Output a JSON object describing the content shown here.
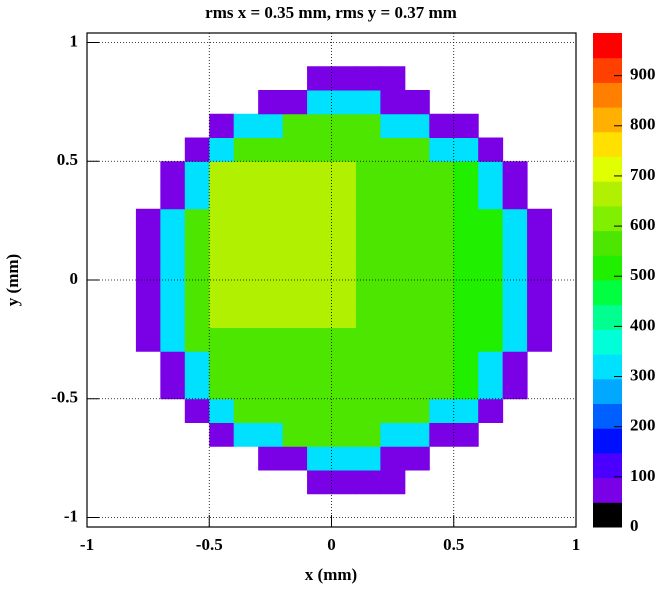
{
  "chart_data": {
    "type": "heatmap",
    "title": "rms x = 0.35 mm, rms y = 0.37 mm",
    "x_label": "x (mm)",
    "y_label": "y (mm)",
    "xlim": [
      -1,
      1
    ],
    "ylim": [
      -1.04,
      1.04
    ],
    "xticks": [
      -1,
      -0.5,
      0,
      0.5,
      1
    ],
    "yticks": [
      -1,
      -0.5,
      0,
      0.5,
      1
    ],
    "zlim": [
      0,
      985
    ],
    "zticks": [
      0,
      100,
      200,
      300,
      400,
      500,
      600,
      700,
      800,
      900
    ],
    "grid": true,
    "colorscale": [
      "#000000",
      "#7a00e6",
      "#4b00ff",
      "#0010ff",
      "#0060ff",
      "#00a8ff",
      "#00e0ff",
      "#00ffd8",
      "#00ff90",
      "#00ff40",
      "#20f000",
      "#4ce600",
      "#80f000",
      "#b0f000",
      "#e0ff00",
      "#ffe000",
      "#ffb000",
      "#ff8000",
      "#ff4000",
      "#ff0000"
    ],
    "x_bins": [
      -1,
      -0.9,
      -0.8,
      -0.7,
      -0.6,
      -0.5,
      -0.4,
      -0.3,
      -0.2,
      -0.1,
      0,
      0.1,
      0.2,
      0.3,
      0.4,
      0.5,
      0.6,
      0.7,
      0.8,
      0.9,
      1
    ],
    "y_bins": [
      -1,
      -0.9,
      -0.8,
      -0.7,
      -0.6,
      -0.5,
      -0.4,
      -0.3,
      -0.2,
      -0.1,
      0,
      0.1,
      0.2,
      0.3,
      0.4,
      0.5,
      0.6,
      0.7,
      0.8,
      0.9,
      1
    ],
    "z": [
      [
        null,
        null,
        null,
        null,
        null,
        null,
        null,
        null,
        null,
        null,
        null,
        null,
        null,
        null,
        null,
        null,
        null,
        null,
        null,
        null
      ],
      [
        null,
        null,
        null,
        null,
        null,
        null,
        null,
        null,
        null,
        80,
        80,
        80,
        80,
        null,
        null,
        null,
        null,
        null,
        null,
        null
      ],
      [
        null,
        null,
        null,
        null,
        null,
        null,
        null,
        80,
        80,
        300,
        300,
        300,
        80,
        80,
        null,
        null,
        null,
        null,
        null,
        null
      ],
      [
        null,
        null,
        null,
        null,
        null,
        80,
        300,
        300,
        560,
        560,
        560,
        560,
        300,
        300,
        80,
        80,
        null,
        null,
        null,
        null
      ],
      [
        null,
        null,
        null,
        null,
        80,
        300,
        560,
        560,
        560,
        560,
        560,
        560,
        560,
        560,
        300,
        300,
        80,
        null,
        null,
        null
      ],
      [
        null,
        null,
        null,
        80,
        300,
        560,
        560,
        560,
        560,
        560,
        560,
        560,
        560,
        560,
        560,
        500,
        300,
        80,
        null,
        null
      ],
      [
        null,
        null,
        null,
        80,
        300,
        560,
        560,
        560,
        560,
        560,
        560,
        560,
        560,
        560,
        560,
        500,
        300,
        80,
        null,
        null
      ],
      [
        null,
        null,
        80,
        300,
        560,
        560,
        560,
        560,
        560,
        560,
        560,
        560,
        560,
        560,
        560,
        500,
        500,
        300,
        80,
        null
      ],
      [
        null,
        null,
        80,
        300,
        560,
        650,
        650,
        650,
        650,
        650,
        650,
        560,
        560,
        560,
        560,
        500,
        500,
        300,
        80,
        null
      ],
      [
        null,
        null,
        80,
        300,
        560,
        650,
        650,
        650,
        650,
        650,
        650,
        560,
        560,
        560,
        560,
        500,
        500,
        300,
        80,
        null
      ],
      [
        null,
        null,
        80,
        300,
        560,
        650,
        650,
        650,
        650,
        650,
        650,
        560,
        560,
        560,
        560,
        500,
        500,
        300,
        80,
        null
      ],
      [
        null,
        null,
        80,
        300,
        560,
        650,
        650,
        650,
        650,
        650,
        650,
        560,
        560,
        560,
        560,
        500,
        500,
        300,
        80,
        null
      ],
      [
        null,
        null,
        80,
        300,
        560,
        650,
        650,
        650,
        650,
        650,
        650,
        560,
        560,
        560,
        560,
        500,
        500,
        300,
        80,
        null
      ],
      [
        null,
        null,
        null,
        80,
        300,
        650,
        650,
        650,
        650,
        650,
        650,
        560,
        560,
        560,
        560,
        500,
        300,
        80,
        null,
        null
      ],
      [
        null,
        null,
        null,
        80,
        300,
        650,
        650,
        650,
        650,
        650,
        650,
        560,
        560,
        560,
        560,
        500,
        300,
        80,
        null,
        null
      ],
      [
        null,
        null,
        null,
        null,
        80,
        300,
        560,
        560,
        560,
        560,
        560,
        560,
        560,
        560,
        300,
        300,
        80,
        null,
        null,
        null
      ],
      [
        null,
        null,
        null,
        null,
        null,
        80,
        300,
        300,
        560,
        560,
        560,
        560,
        300,
        300,
        80,
        80,
        null,
        null,
        null,
        null
      ],
      [
        null,
        null,
        null,
        null,
        null,
        null,
        null,
        80,
        80,
        300,
        300,
        300,
        80,
        80,
        null,
        null,
        null,
        null,
        null,
        null
      ],
      [
        null,
        null,
        null,
        null,
        null,
        null,
        null,
        null,
        null,
        80,
        80,
        80,
        80,
        null,
        null,
        null,
        null,
        null,
        null,
        null
      ],
      [
        null,
        null,
        null,
        null,
        null,
        null,
        null,
        null,
        null,
        null,
        null,
        null,
        null,
        null,
        null,
        null,
        null,
        null,
        null,
        null
      ]
    ]
  }
}
